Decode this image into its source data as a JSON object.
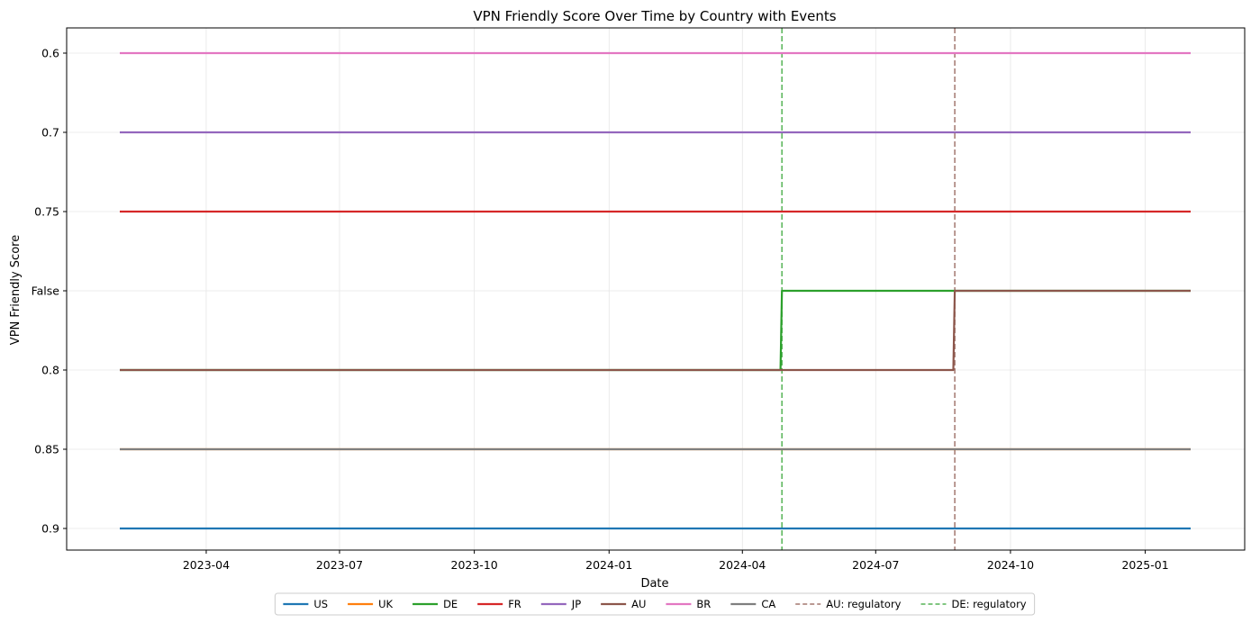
{
  "chart_data": {
    "type": "line",
    "title": "VPN Friendly Score Over Time by Country with Events",
    "xlabel": "Date",
    "ylabel": "VPN Friendly Score",
    "x_range": [
      "2023-02-01",
      "2025-02-01"
    ],
    "x_ticks": [
      "2023-04",
      "2023-07",
      "2023-10",
      "2024-01",
      "2024-04",
      "2024-07",
      "2024-10",
      "2025-01"
    ],
    "y_categories": [
      "0.6",
      "0.7",
      "0.75",
      "False",
      "0.8",
      "0.85",
      "0.9"
    ],
    "y_axis_note": "categorical axis, inverted (first category at top)",
    "grid": true,
    "legend_placement": "bottom-center",
    "series": [
      {
        "name": "US",
        "color": "#1f77b4",
        "points": [
          [
            "2023-02-01",
            "0.9"
          ],
          [
            "2025-02-01",
            "0.9"
          ]
        ]
      },
      {
        "name": "UK",
        "color": "#ff7f0e",
        "points": [
          [
            "2023-02-01",
            "0.85"
          ],
          [
            "2025-02-01",
            "0.85"
          ]
        ]
      },
      {
        "name": "DE",
        "color": "#2ca02c",
        "points": [
          [
            "2023-02-01",
            "0.8"
          ],
          [
            "2024-04-27",
            "0.8"
          ],
          [
            "2024-04-28",
            "False"
          ],
          [
            "2025-02-01",
            "False"
          ]
        ]
      },
      {
        "name": "FR",
        "color": "#d62728",
        "points": [
          [
            "2023-02-01",
            "0.75"
          ],
          [
            "2025-02-01",
            "0.75"
          ]
        ]
      },
      {
        "name": "JP",
        "color": "#9467bd",
        "points": [
          [
            "2023-02-01",
            "0.7"
          ],
          [
            "2025-02-01",
            "0.7"
          ]
        ]
      },
      {
        "name": "AU",
        "color": "#8c564b",
        "points": [
          [
            "2023-02-01",
            "0.8"
          ],
          [
            "2024-08-23",
            "0.8"
          ],
          [
            "2024-08-24",
            "False"
          ],
          [
            "2025-02-01",
            "False"
          ]
        ]
      },
      {
        "name": "BR",
        "color": "#e377c2",
        "points": [
          [
            "2023-02-01",
            "0.6"
          ],
          [
            "2025-02-01",
            "0.6"
          ]
        ]
      },
      {
        "name": "CA",
        "color": "#7f7f7f",
        "points": [
          [
            "2023-02-01",
            "0.85"
          ],
          [
            "2025-02-01",
            "0.85"
          ]
        ]
      }
    ],
    "events": [
      {
        "name": "AU: regulatory",
        "date": "2024-08-24",
        "color": "#8c564b"
      },
      {
        "name": "DE: regulatory",
        "date": "2024-04-28",
        "color": "#2ca02c"
      }
    ]
  }
}
